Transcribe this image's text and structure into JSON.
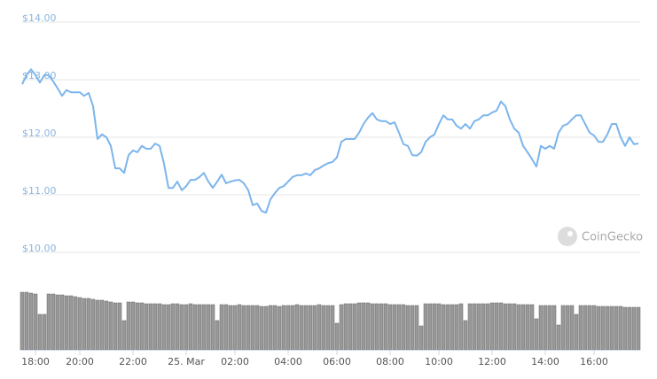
{
  "chart_data": {
    "type": "line",
    "watermark": "CoinGecko",
    "categories": [
      null,
      null,
      null,
      "18:00",
      null,
      null,
      null,
      null,
      null,
      null,
      null,
      null,
      null,
      "20:00",
      null,
      null,
      null,
      null,
      null,
      null,
      null,
      null,
      null,
      null,
      null,
      "22:00",
      null,
      null,
      null,
      null,
      null,
      null,
      null,
      null,
      null,
      null,
      null,
      "25. Mar",
      null,
      null,
      null,
      null,
      null,
      null,
      null,
      null,
      null,
      null,
      "02:00",
      null,
      null,
      null,
      null,
      null,
      null,
      null,
      null,
      null,
      null,
      null,
      "04:00",
      null,
      null,
      null,
      null,
      null,
      null,
      null,
      null,
      null,
      null,
      "06:00",
      null,
      null,
      null,
      null,
      null,
      null,
      null,
      null,
      null,
      null,
      null,
      "08:00",
      null,
      null,
      null,
      null,
      null,
      null,
      null,
      null,
      null,
      null,
      "10:00",
      null,
      null,
      null,
      null,
      null,
      null,
      null,
      null,
      null,
      null,
      null,
      "12:00",
      null,
      null,
      null,
      null,
      null,
      null,
      null,
      null,
      null,
      null,
      null,
      "14:00",
      null,
      null,
      null,
      null,
      null,
      null,
      null,
      null,
      null,
      null,
      "16:00",
      null,
      null,
      null,
      null,
      null,
      null,
      null,
      null,
      null,
      null
    ],
    "series": [
      {
        "color": "#7cb5ec",
        "values": [
          12.92,
          13.08,
          13.18,
          13.08,
          12.95,
          13.08,
          13.08,
          12.97,
          12.85,
          12.72,
          12.82,
          12.78,
          12.78,
          12.78,
          12.72,
          12.77,
          12.54,
          11.97,
          12.05,
          12.0,
          11.85,
          11.46,
          11.46,
          11.38,
          11.69,
          11.77,
          11.74,
          11.85,
          11.8,
          11.8,
          11.89,
          11.85,
          11.54,
          11.12,
          11.12,
          11.23,
          11.08,
          11.15,
          11.26,
          11.26,
          11.31,
          11.38,
          11.23,
          11.12,
          11.23,
          11.35,
          11.2,
          11.23,
          11.25,
          11.26,
          11.2,
          11.08,
          10.82,
          10.85,
          10.72,
          10.69,
          10.92,
          11.03,
          11.12,
          11.15,
          11.23,
          11.31,
          11.34,
          11.34,
          11.37,
          11.34,
          11.43,
          11.46,
          11.51,
          11.55,
          11.57,
          11.65,
          11.92,
          11.97,
          11.97,
          11.97,
          12.08,
          12.23,
          12.34,
          12.42,
          12.31,
          12.28,
          12.28,
          12.23,
          12.26,
          12.08,
          11.88,
          11.85,
          11.69,
          11.68,
          11.74,
          11.92,
          12.0,
          12.05,
          12.23,
          12.38,
          12.31,
          12.31,
          12.2,
          12.15,
          12.23,
          12.15,
          12.28,
          12.31,
          12.38,
          12.38,
          12.43,
          12.46,
          12.62,
          12.54,
          12.31,
          12.15,
          12.08,
          11.85,
          11.74,
          11.62,
          11.49,
          11.85,
          11.8,
          11.85,
          11.8,
          12.08,
          12.2,
          12.23,
          12.31,
          12.38,
          12.38,
          12.23,
          12.08,
          12.03,
          11.92,
          11.92,
          12.05,
          12.23,
          12.23,
          12.0,
          11.85,
          12.0,
          11.88,
          11.89
        ]
      },
      {
        "type": "bar",
        "axis": "y2",
        "color": "#999999",
        "values": [
          65,
          65,
          64,
          63,
          40,
          40,
          63,
          63,
          62,
          62,
          61,
          61,
          60,
          59,
          58,
          58,
          57,
          56,
          56,
          55,
          54,
          53,
          53,
          33,
          54,
          54,
          53,
          53,
          52,
          52,
          52,
          52,
          51,
          51,
          52,
          52,
          51,
          51,
          52,
          51,
          51,
          51,
          51,
          51,
          33,
          51,
          51,
          50,
          50,
          51,
          50,
          50,
          50,
          50,
          49,
          49,
          50,
          50,
          49,
          50,
          50,
          50,
          51,
          50,
          50,
          50,
          50,
          51,
          50,
          50,
          50,
          30,
          51,
          52,
          52,
          52,
          53,
          53,
          53,
          52,
          52,
          52,
          52,
          51,
          51,
          51,
          51,
          50,
          50,
          50,
          27,
          52,
          52,
          52,
          52,
          51,
          51,
          51,
          51,
          52,
          33,
          52,
          52,
          52,
          52,
          52,
          53,
          53,
          53,
          52,
          52,
          52,
          51,
          51,
          51,
          51,
          35,
          50,
          50,
          50,
          50,
          28,
          50,
          50,
          50,
          40,
          50,
          50,
          50,
          50,
          49,
          49,
          49,
          49,
          49,
          49,
          48,
          48,
          48,
          48
        ]
      }
    ],
    "ylim": [
      10,
      14
    ],
    "yticks": [
      {
        "value": 10,
        "label": "$10.00"
      },
      {
        "value": 11,
        "label": "$11.00"
      },
      {
        "value": 12,
        "label": "$12.00"
      },
      {
        "value": 13,
        "label": "$13.00"
      },
      {
        "value": 14,
        "label": "$14.00"
      }
    ],
    "y2lim": [
      0,
      70
    ],
    "grid": true
  }
}
